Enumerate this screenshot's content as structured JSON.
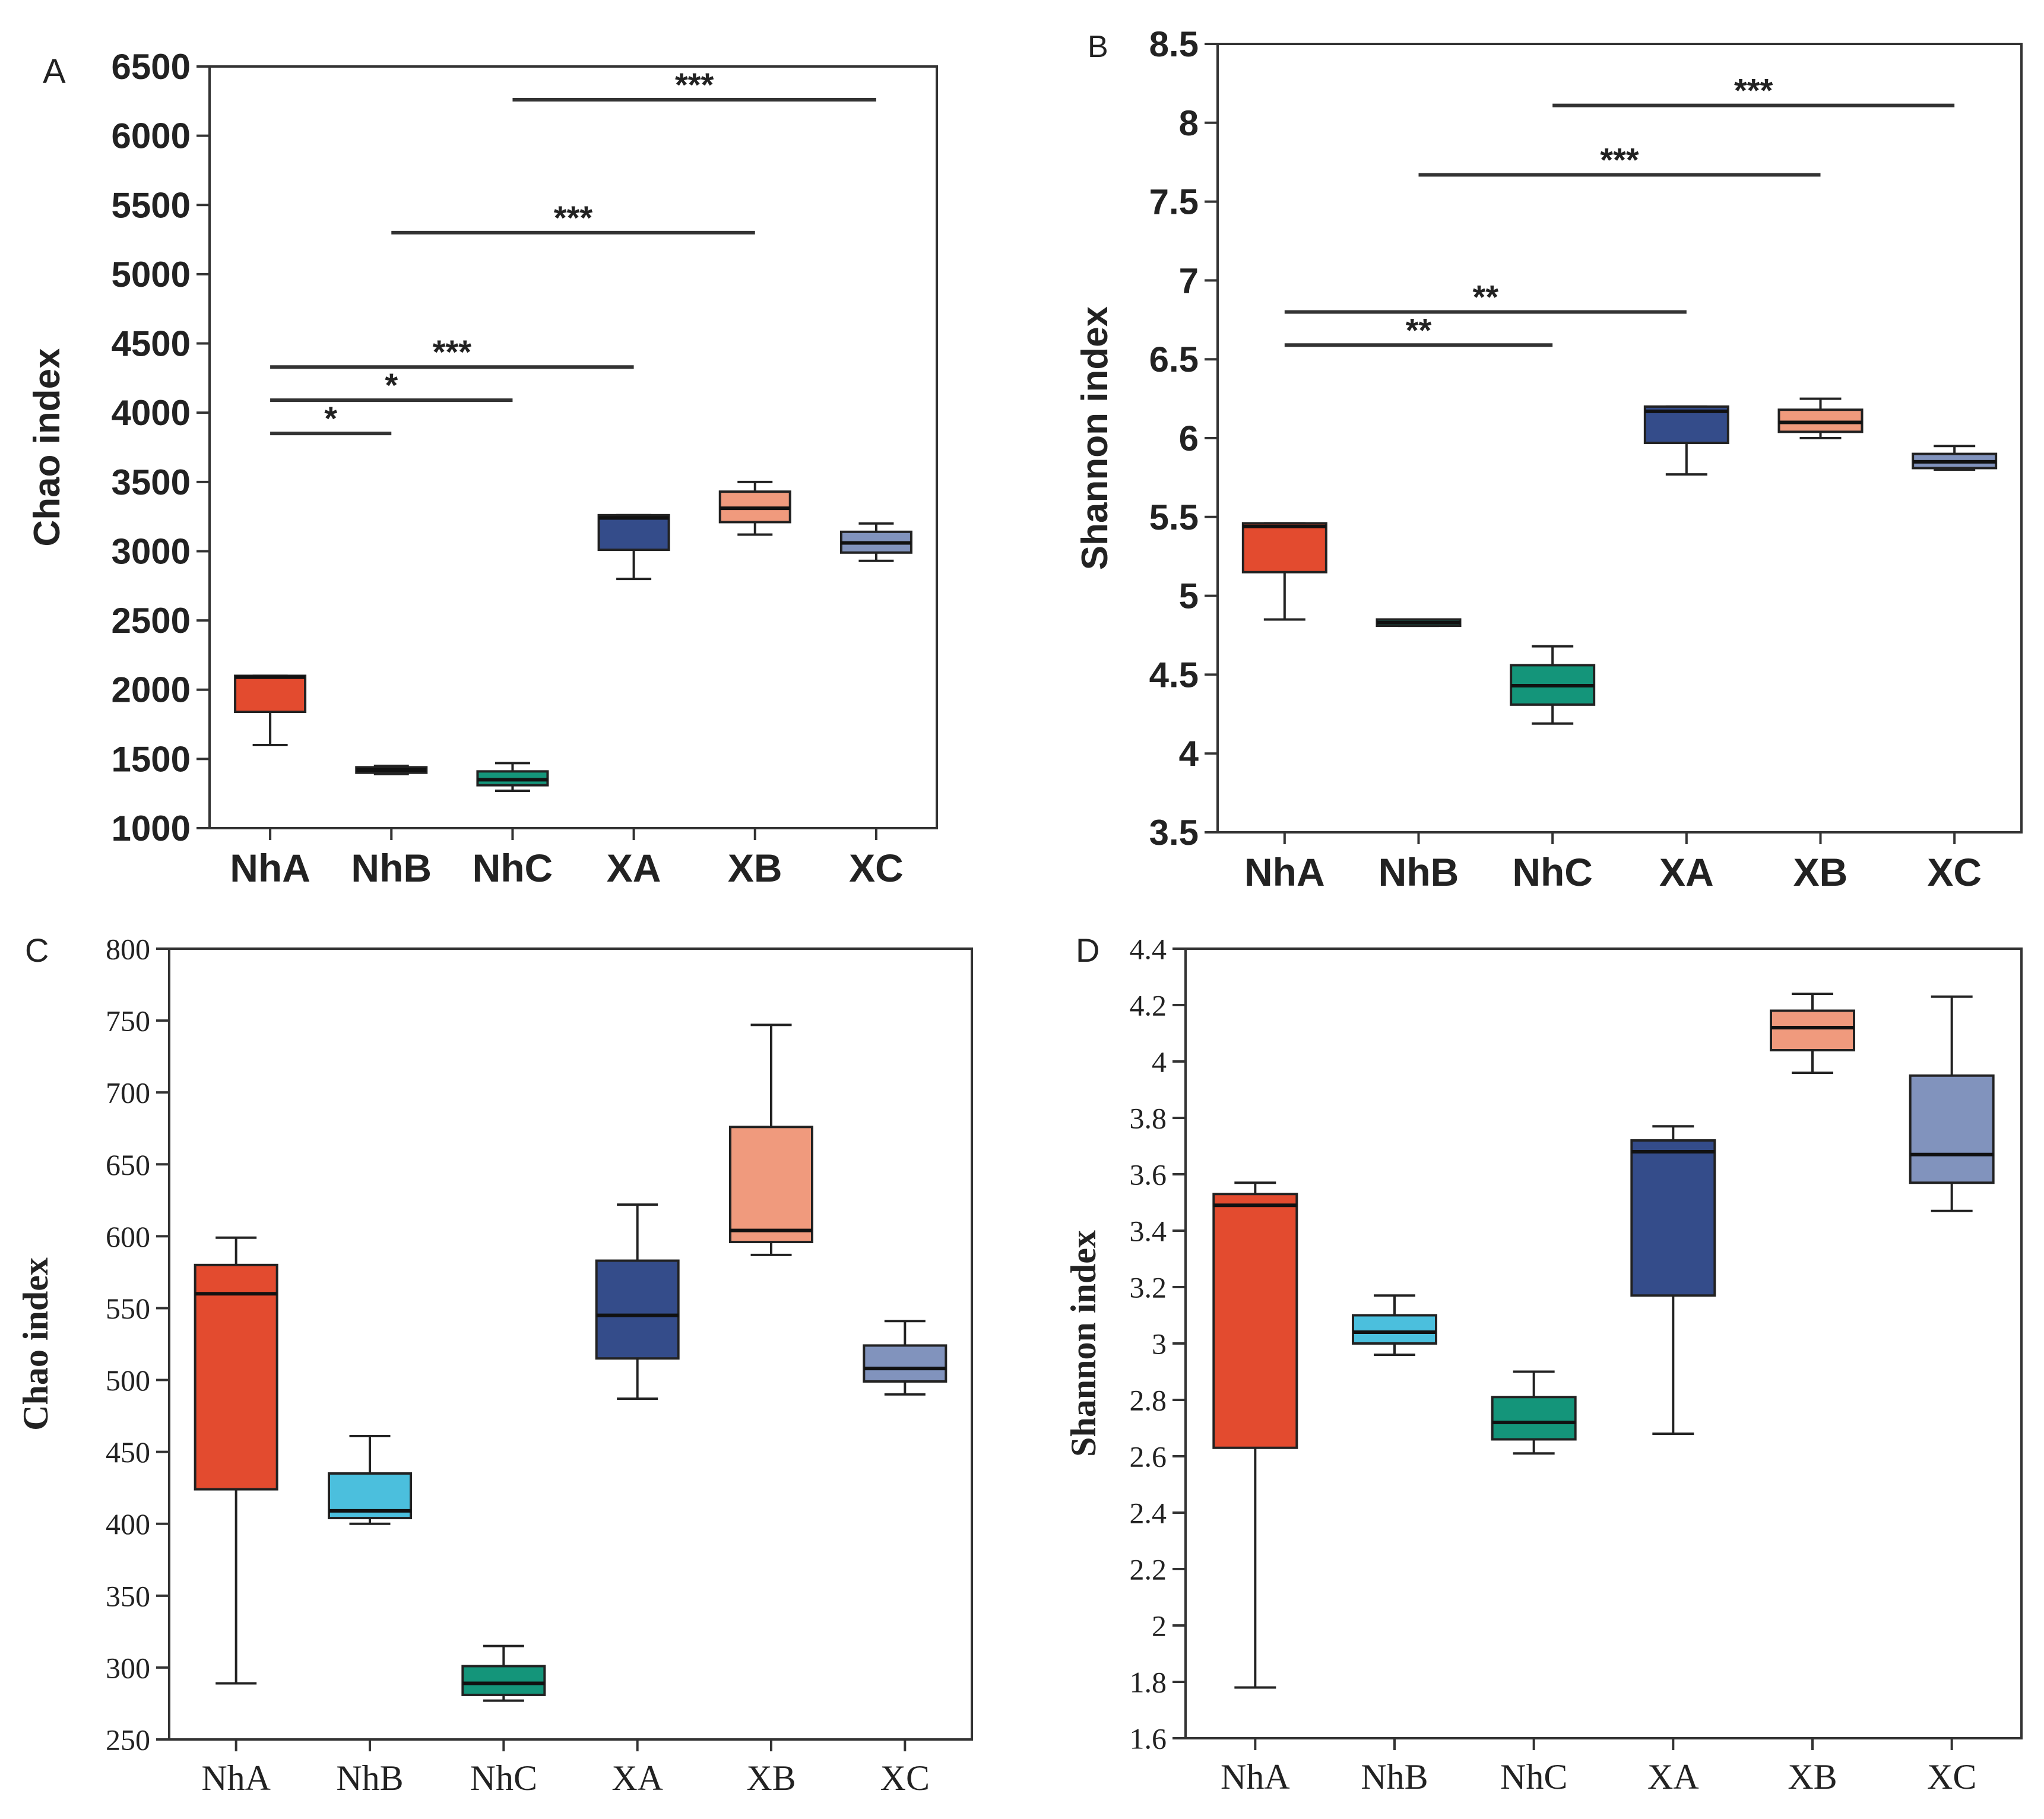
{
  "chart_data": [
    {
      "panel": "A",
      "type": "box",
      "ylabel": "Chao index",
      "ylim": [
        1000,
        6500
      ],
      "yticks": [
        "1000",
        "1500",
        "2000",
        "2500",
        "3000",
        "3500",
        "4000",
        "4500",
        "5000",
        "5500",
        "6000",
        "6500"
      ],
      "categories": [
        "NhA",
        "NhB",
        "NhC",
        "XA",
        "XB",
        "XC"
      ],
      "boxes": [
        {
          "min": 1600,
          "q1": 1840,
          "median": 2090,
          "q3": 2100,
          "max": 2100
        },
        {
          "min": 1390,
          "q1": 1400,
          "median": 1420,
          "q3": 1440,
          "max": 1450
        },
        {
          "min": 1270,
          "q1": 1310,
          "median": 1350,
          "q3": 1410,
          "max": 1470
        },
        {
          "min": 2800,
          "q1": 3010,
          "median": 3240,
          "q3": 3260,
          "max": 3260
        },
        {
          "min": 3120,
          "q1": 3210,
          "median": 3310,
          "q3": 3430,
          "max": 3500
        },
        {
          "min": 2930,
          "q1": 2990,
          "median": 3060,
          "q3": 3140,
          "max": 3200
        }
      ],
      "significance": [
        {
          "from": 0,
          "to": 1,
          "y": 3850,
          "label": "*"
        },
        {
          "from": 0,
          "to": 2,
          "y": 4090,
          "label": "*"
        },
        {
          "from": 0,
          "to": 3,
          "y": 4330,
          "label": "***"
        },
        {
          "from": 1,
          "to": 4,
          "y": 5300,
          "label": "***"
        },
        {
          "from": 2,
          "to": 5,
          "y": 6260,
          "label": "***"
        }
      ]
    },
    {
      "panel": "B",
      "type": "box",
      "ylabel": "Shannon index",
      "ylim": [
        3.5,
        8.5
      ],
      "yticks": [
        "3.5",
        "4",
        "4.5",
        "5",
        "5.5",
        "6",
        "6.5",
        "7",
        "7.5",
        "8",
        "8.5"
      ],
      "categories": [
        "NhA",
        "NhB",
        "NhC",
        "XA",
        "XB",
        "XC"
      ],
      "boxes": [
        {
          "min": 4.85,
          "q1": 5.15,
          "median": 5.44,
          "q3": 5.46,
          "max": 5.46
        },
        {
          "min": 4.81,
          "q1": 4.81,
          "median": 4.83,
          "q3": 4.85,
          "max": 4.85
        },
        {
          "min": 4.19,
          "q1": 4.31,
          "median": 4.43,
          "q3": 4.56,
          "max": 4.68
        },
        {
          "min": 5.77,
          "q1": 5.97,
          "median": 6.17,
          "q3": 6.2,
          "max": 6.2
        },
        {
          "min": 6.0,
          "q1": 6.04,
          "median": 6.1,
          "q3": 6.18,
          "max": 6.25
        },
        {
          "min": 5.8,
          "q1": 5.81,
          "median": 5.85,
          "q3": 5.9,
          "max": 5.95
        }
      ],
      "significance": [
        {
          "from": 0,
          "to": 2,
          "y": 6.59,
          "label": "**"
        },
        {
          "from": 0,
          "to": 3,
          "y": 6.8,
          "label": "**"
        },
        {
          "from": 1,
          "to": 4,
          "y": 7.67,
          "label": "***"
        },
        {
          "from": 2,
          "to": 5,
          "y": 8.11,
          "label": "***"
        }
      ]
    },
    {
      "panel": "C",
      "type": "box",
      "ylabel": "Chao index",
      "ylim": [
        250,
        800
      ],
      "yticks": [
        "250",
        "300",
        "350",
        "400",
        "450",
        "500",
        "550",
        "600",
        "650",
        "700",
        "750",
        "800"
      ],
      "categories": [
        "NhA",
        "NhB",
        "NhC",
        "XA",
        "XB",
        "XC"
      ],
      "boxes": [
        {
          "min": 289,
          "q1": 424,
          "median": 560,
          "q3": 580,
          "max": 599
        },
        {
          "min": 400,
          "q1": 404,
          "median": 409,
          "q3": 435,
          "max": 461
        },
        {
          "min": 277,
          "q1": 281,
          "median": 289,
          "q3": 301,
          "max": 315
        },
        {
          "min": 487,
          "q1": 515,
          "median": 545,
          "q3": 583,
          "max": 622
        },
        {
          "min": 587,
          "q1": 596,
          "median": 604,
          "q3": 676,
          "max": 747
        },
        {
          "min": 490,
          "q1": 499,
          "median": 508,
          "q3": 524,
          "max": 541
        }
      ],
      "significance": []
    },
    {
      "panel": "D",
      "type": "box",
      "ylabel": "Shannon index",
      "ylim": [
        1.6,
        4.4
      ],
      "yticks": [
        "1.6",
        "1.8",
        "2",
        "2.2",
        "2.4",
        "2.6",
        "2.8",
        "3",
        "3.2",
        "3.4",
        "3.6",
        "3.8",
        "4",
        "4.2",
        "4.4"
      ],
      "categories": [
        "NhA",
        "NhB",
        "NhC",
        "XA",
        "XB",
        "XC"
      ],
      "boxes": [
        {
          "min": 1.78,
          "q1": 2.63,
          "median": 3.49,
          "q3": 3.53,
          "max": 3.57
        },
        {
          "min": 2.96,
          "q1": 3.0,
          "median": 3.04,
          "q3": 3.1,
          "max": 3.17
        },
        {
          "min": 2.61,
          "q1": 2.66,
          "median": 2.72,
          "q3": 2.81,
          "max": 2.9
        },
        {
          "min": 2.68,
          "q1": 3.17,
          "median": 3.68,
          "q3": 3.72,
          "max": 3.77
        },
        {
          "min": 3.96,
          "q1": 4.04,
          "median": 4.12,
          "q3": 4.18,
          "max": 4.24
        },
        {
          "min": 3.47,
          "q1": 3.57,
          "median": 3.67,
          "q3": 3.95,
          "max": 4.23
        }
      ],
      "significance": []
    }
  ],
  "colors": {
    "boxes": [
      "#e34b2f",
      "#4bbfdd",
      "#14957a",
      "#344c8a",
      "#f09a7d",
      "#8193bd"
    ],
    "boxes_top": [
      "#e34b2f",
      "#14957a",
      "#14957a",
      "#344c8a",
      "#f09a7d",
      "#8193bd"
    ],
    "axis": "#333333",
    "significance_bar": "#333333"
  }
}
